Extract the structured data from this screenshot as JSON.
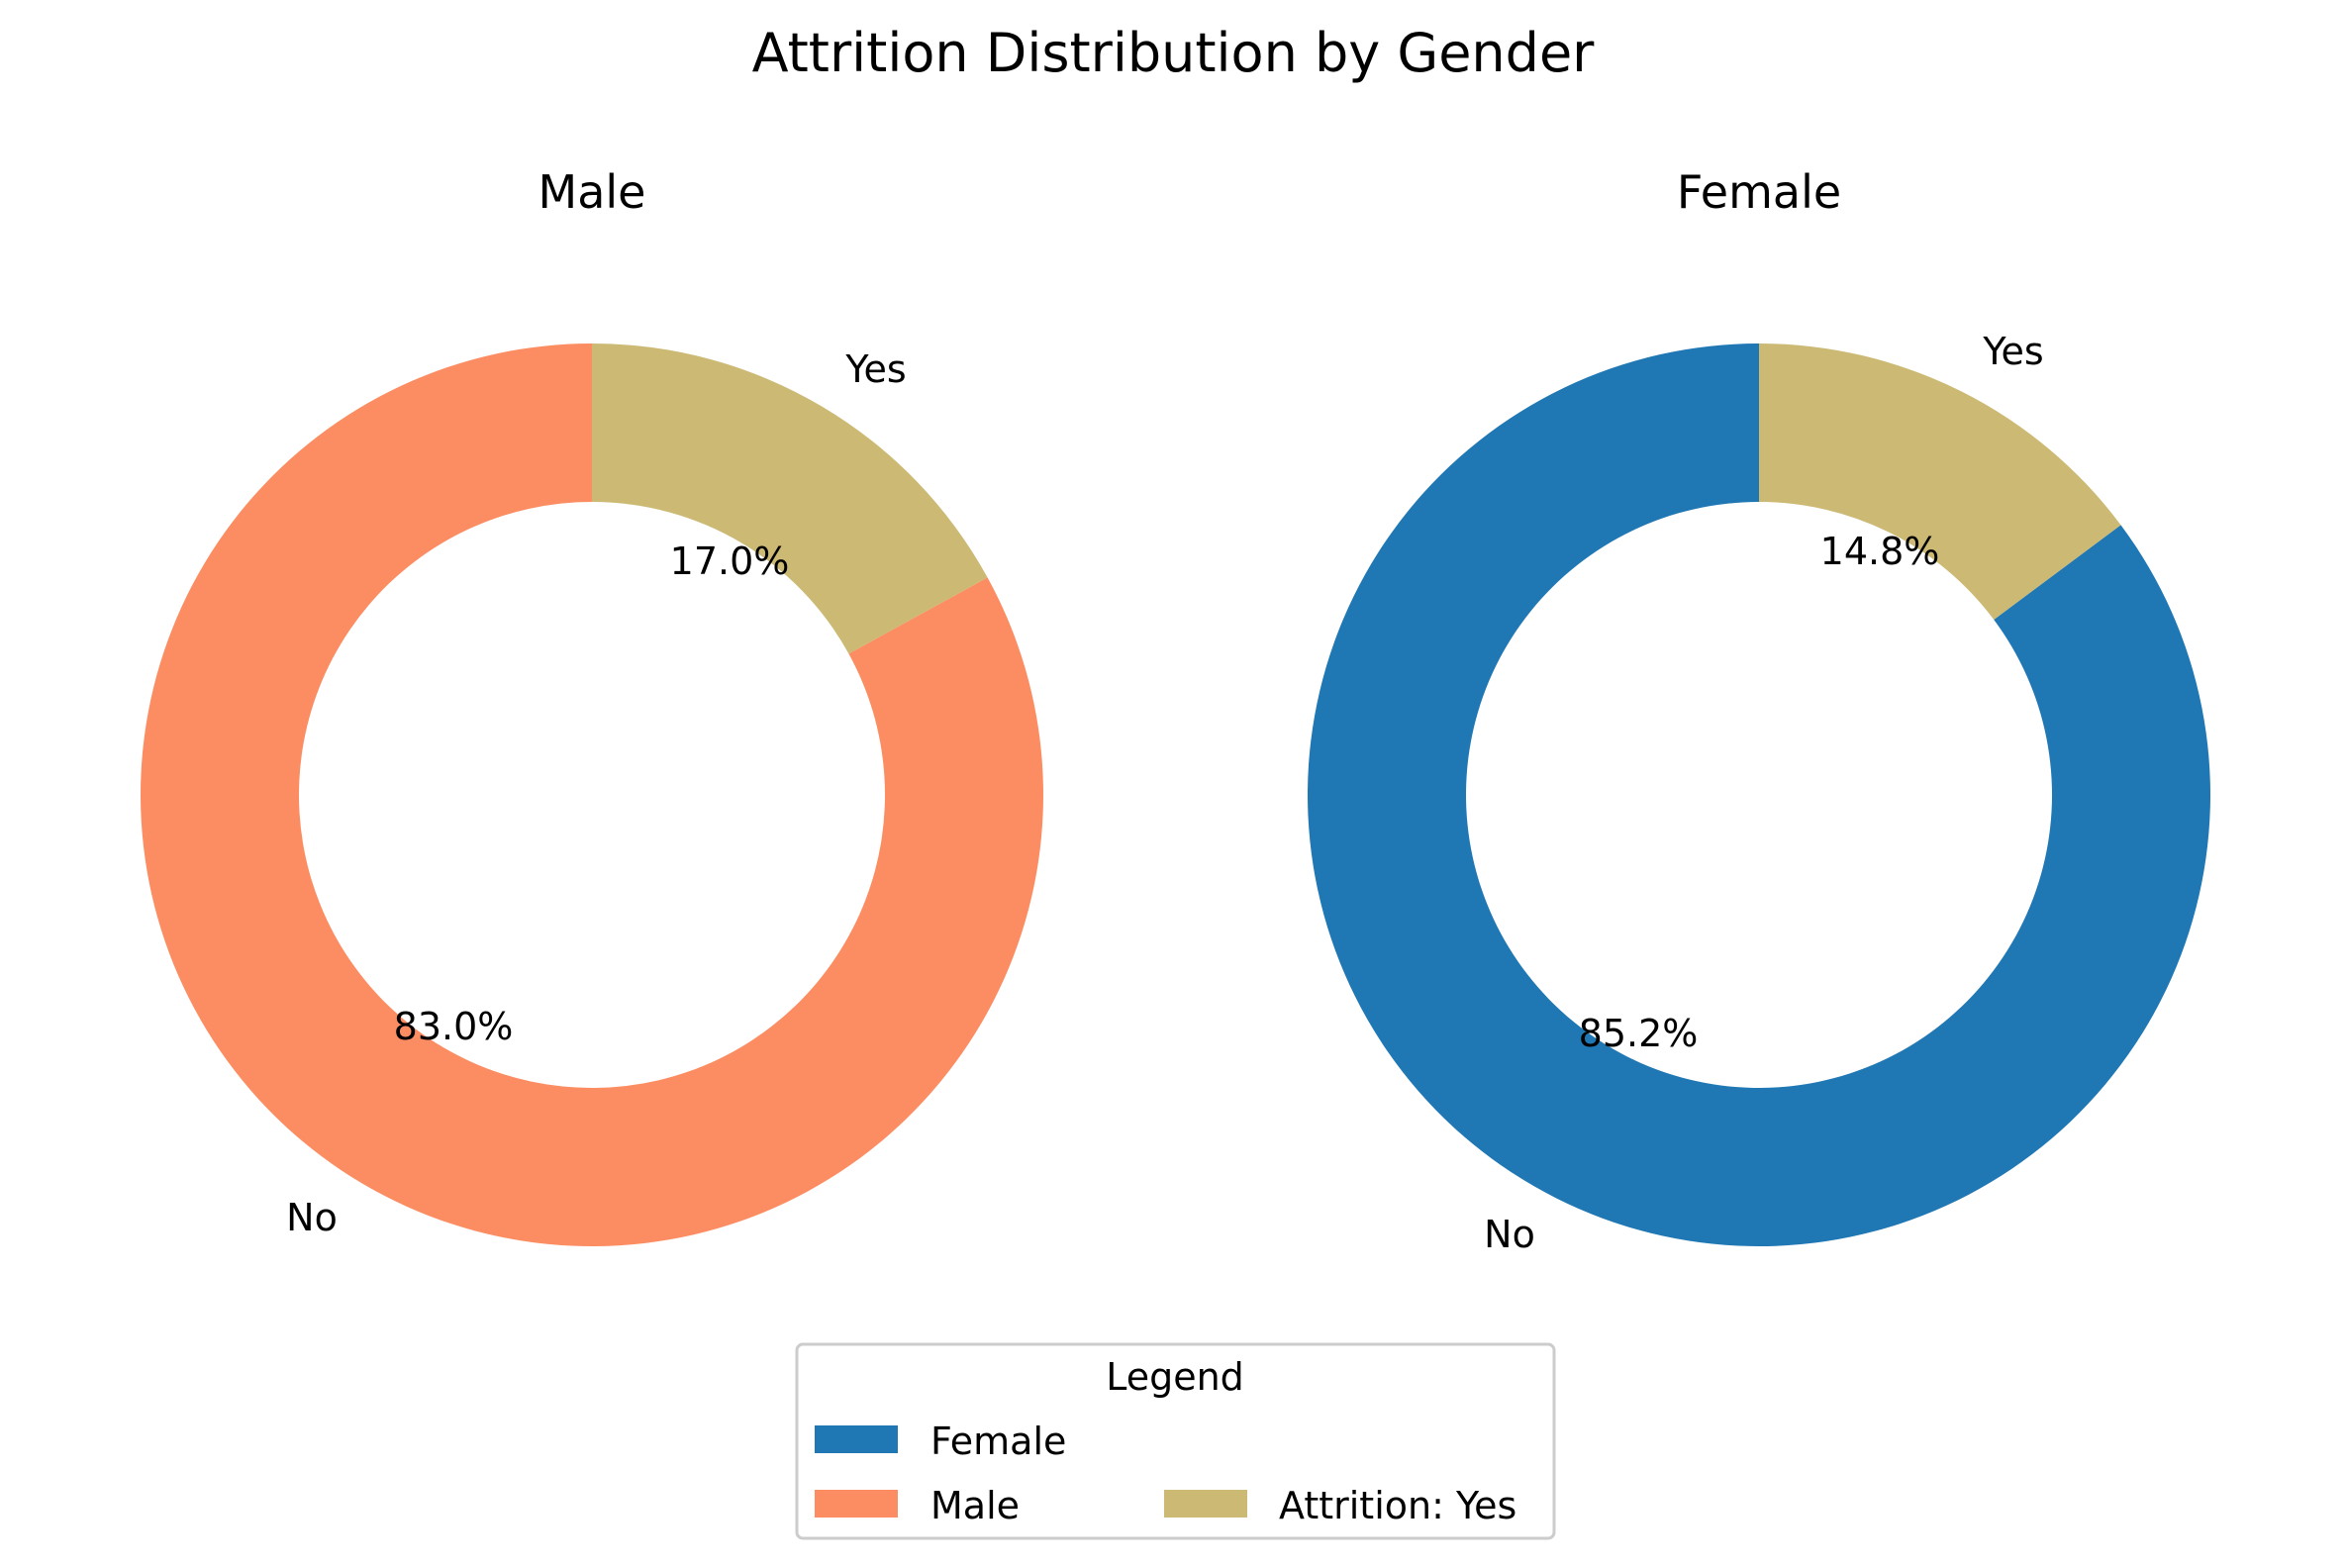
{
  "chart_data": {
    "type": "pie",
    "title": "Attrition Distribution by Gender",
    "charts": [
      {
        "title": "Male",
        "categories": [
          "No",
          "Yes"
        ],
        "values": [
          83.0,
          17.0
        ],
        "pct_labels": [
          "83.0%",
          "17.0%"
        ],
        "colors": [
          "#fc8d62",
          "#ccb974"
        ]
      },
      {
        "title": "Female",
        "categories": [
          "No",
          "Yes"
        ],
        "values": [
          85.2,
          14.8
        ],
        "pct_labels": [
          "85.2%",
          "14.8%"
        ],
        "colors": [
          "#1f77b4",
          "#ccb974"
        ]
      }
    ],
    "legend": {
      "title": "Legend",
      "placement": "bottom-center",
      "items": [
        {
          "label": "Female",
          "color": "#1f77b4"
        },
        {
          "label": "Male",
          "color": "#fc8d62"
        },
        {
          "label": "Attrition: Yes",
          "color": "#ccb974"
        }
      ]
    }
  }
}
